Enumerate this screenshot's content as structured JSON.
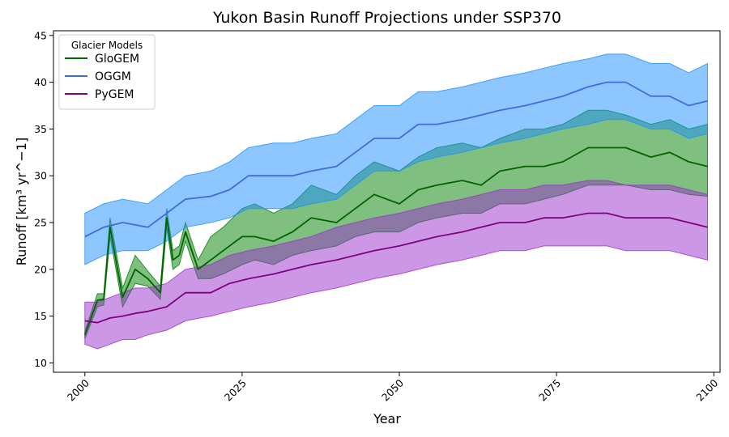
{
  "chart_data": {
    "type": "line",
    "title": "Yukon Basin Runoff Projections under SSP370",
    "xlabel": "Year",
    "ylabel": "Runoff [km$^3$ yr$^{-1}$]",
    "ylabel_display": "Runoff [km³ yr^−1]",
    "xlim": [
      1995,
      2101
    ],
    "ylim": [
      9,
      45.5
    ],
    "xticks": [
      2000,
      2025,
      2050,
      2075,
      2100
    ],
    "yticks": [
      10,
      15,
      20,
      25,
      30,
      35,
      40,
      45
    ],
    "grid": false,
    "legend": {
      "title": "Glacier Models",
      "placement": "top-left"
    },
    "series": [
      {
        "name": "GloGEM",
        "color": "#006400",
        "band_color": "#008000",
        "anchor_years": [
          2000,
          2002,
          2003,
          2004,
          2006,
          2008,
          2010,
          2012,
          2013,
          2014,
          2015,
          2016,
          2018,
          2020,
          2022,
          2025,
          2027,
          2030,
          2033,
          2036,
          2040,
          2043,
          2046,
          2050,
          2053,
          2056,
          2060,
          2063,
          2066,
          2070,
          2073,
          2076,
          2080,
          2083,
          2086,
          2090,
          2093,
          2096,
          2099
        ],
        "median": [
          13,
          16.7,
          16.8,
          24.5,
          17,
          20,
          19,
          17.5,
          25.5,
          21,
          21.5,
          24,
          20,
          21,
          22,
          23.5,
          23.5,
          23,
          24,
          25.5,
          25,
          26.5,
          28,
          27,
          28.5,
          29,
          29.5,
          29,
          30.5,
          31,
          31,
          31.5,
          33,
          33,
          33,
          32,
          32.5,
          31.5,
          31
        ],
        "lower": [
          12.6,
          16,
          16.2,
          23.5,
          16,
          18.5,
          18.2,
          16.8,
          24.5,
          20,
          20.5,
          23,
          19,
          19,
          19.5,
          20.5,
          21,
          20.5,
          21.5,
          22,
          22.5,
          23.5,
          24,
          24,
          25,
          25.5,
          26,
          26,
          27,
          27,
          27.5,
          28,
          29,
          29,
          29,
          28.5,
          28.5,
          28,
          27.8
        ],
        "upper": [
          13.4,
          17.4,
          17.4,
          25.5,
          18,
          21.5,
          19.8,
          18.2,
          26.5,
          22,
          22.5,
          25,
          21,
          23.5,
          24.5,
          26.5,
          27,
          26,
          27,
          29,
          28,
          30,
          31.5,
          30.5,
          32,
          33,
          33.5,
          33,
          34,
          35,
          35,
          35.5,
          37,
          37,
          36.5,
          35.5,
          36,
          35,
          35.5
        ]
      },
      {
        "name": "OGGM",
        "color": "#4169e1",
        "band_color": "#1e90ff",
        "anchor_years": [
          2000,
          2003,
          2006,
          2010,
          2013,
          2016,
          2020,
          2023,
          2026,
          2030,
          2033,
          2036,
          2040,
          2043,
          2046,
          2050,
          2053,
          2056,
          2060,
          2063,
          2066,
          2070,
          2073,
          2076,
          2080,
          2083,
          2086,
          2090,
          2093,
          2096,
          2099
        ],
        "median": [
          23.5,
          24.5,
          25,
          24.5,
          26,
          27.5,
          27.8,
          28.5,
          30,
          30,
          30,
          30.5,
          31,
          32.5,
          34,
          34,
          35.5,
          35.5,
          36,
          36.5,
          37,
          37.5,
          38,
          38.5,
          39.5,
          40,
          40,
          38.5,
          38.5,
          37.5,
          38
        ],
        "lower": [
          20.5,
          21.5,
          22,
          22,
          23,
          24.5,
          25,
          25.5,
          26.5,
          26.5,
          26.5,
          27,
          27.5,
          29,
          30.5,
          30.5,
          31.5,
          32,
          32.5,
          33,
          33.5,
          34,
          34.5,
          35,
          35.5,
          36,
          36,
          35,
          35,
          34,
          34.5
        ],
        "upper": [
          26,
          27,
          27.5,
          27,
          28.5,
          30,
          30.5,
          31.5,
          33,
          33.5,
          33.5,
          34,
          34.5,
          36,
          37.5,
          37.5,
          39,
          39,
          39.5,
          40,
          40.5,
          41,
          41.5,
          42,
          42.5,
          43,
          43,
          42,
          42,
          41,
          42
        ]
      },
      {
        "name": "PyGEM",
        "color": "#800080",
        "band_color": "#9932cc",
        "anchor_years": [
          2000,
          2002,
          2004,
          2006,
          2008,
          2010,
          2013,
          2016,
          2020,
          2023,
          2026,
          2030,
          2033,
          2036,
          2040,
          2043,
          2046,
          2050,
          2053,
          2056,
          2060,
          2063,
          2066,
          2070,
          2073,
          2076,
          2080,
          2083,
          2086,
          2090,
          2093,
          2096,
          2099
        ],
        "median": [
          14.5,
          14.3,
          14.8,
          15,
          15.3,
          15.5,
          16,
          17.5,
          17.5,
          18.5,
          19,
          19.5,
          20,
          20.5,
          21,
          21.5,
          22,
          22.5,
          23,
          23.5,
          24,
          24.5,
          25,
          25,
          25.5,
          25.5,
          26,
          26,
          25.5,
          25.5,
          25.5,
          25,
          24.5
        ],
        "lower": [
          12,
          11.5,
          12,
          12.5,
          12.5,
          13,
          13.5,
          14.5,
          15,
          15.5,
          16,
          16.5,
          17,
          17.5,
          18,
          18.5,
          19,
          19.5,
          20,
          20.5,
          21,
          21.5,
          22,
          22,
          22.5,
          22.5,
          22.5,
          22.5,
          22,
          22,
          22,
          21.5,
          21
        ],
        "upper": [
          16.5,
          16.5,
          17,
          17.5,
          18,
          18,
          18.5,
          20,
          20.5,
          21.5,
          22,
          22.5,
          23,
          23.5,
          24.5,
          25,
          25.5,
          26,
          26.5,
          27,
          27.5,
          28,
          28.5,
          28.5,
          29,
          29,
          29.5,
          29.5,
          29,
          29,
          29,
          28.5,
          28
        ]
      }
    ]
  }
}
